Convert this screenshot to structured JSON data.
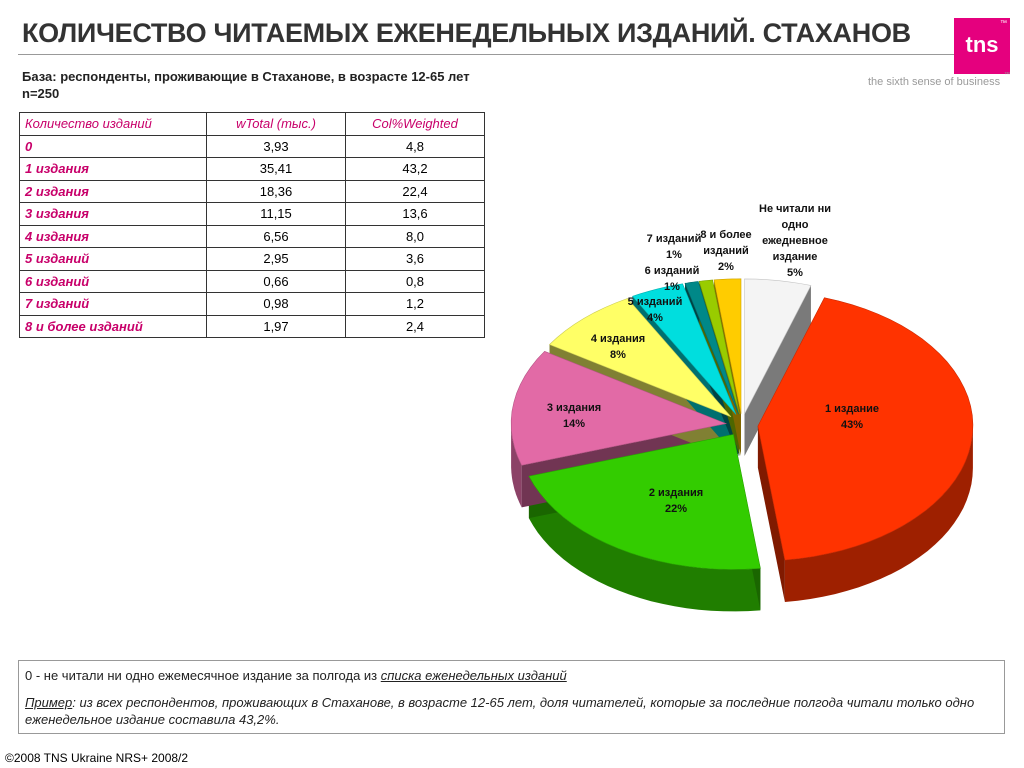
{
  "title": "КОЛИЧЕСТВО ЧИТАЕМЫХ ЕЖЕНЕДЕЛЬНЫХ ИЗДАНИЙ. СТАХАНОВ",
  "logo": {
    "text": "tns",
    "tm": "™",
    "tagline": "the sixth sense of business",
    "tagline_tm": "™",
    "color": "#e5007e"
  },
  "base": {
    "line1": "База: респонденты, проживающие в Стаханове, в возрасте 12-65 лет",
    "line2": "n=250"
  },
  "table": {
    "headers": [
      "Количество изданий",
      "wTotal (тыс.)",
      "Col%Weighted"
    ],
    "rows": [
      [
        "0",
        "3,93",
        "4,8"
      ],
      [
        "1 издания",
        "35,41",
        "43,2"
      ],
      [
        "2 издания",
        "18,36",
        "22,4"
      ],
      [
        "3 издания",
        "11,15",
        "13,6"
      ],
      [
        "4 издания",
        "6,56",
        "8,0"
      ],
      [
        "5 изданий",
        "2,95",
        "3,6"
      ],
      [
        "6 изданий",
        "0,66",
        "0,8"
      ],
      [
        "7 изданий",
        "0,98",
        "1,2"
      ],
      [
        "8 и более изданий",
        "1,97",
        "2,4"
      ]
    ]
  },
  "chart_data": {
    "type": "pie",
    "title": "",
    "slices": [
      {
        "label": "Не читали ни одно ежедневное издание",
        "label_lines": [
          "Не читали ни",
          "одно",
          "ежедневное",
          "издание",
          "5%"
        ],
        "value": 5,
        "color": "#f4f4f4"
      },
      {
        "label": "1 издание",
        "label_lines": [
          "1 издание",
          "43%"
        ],
        "value": 43,
        "color": "#ff3300"
      },
      {
        "label": "2 издания",
        "label_lines": [
          "2 издания",
          "22%"
        ],
        "value": 22,
        "color": "#33cc00"
      },
      {
        "label": "3 издания",
        "label_lines": [
          "3 издания",
          "14%"
        ],
        "value": 14,
        "color": "#e26aa6"
      },
      {
        "label": "4 издания",
        "label_lines": [
          "4 издания",
          "8%"
        ],
        "value": 8,
        "color": "#ffff66"
      },
      {
        "label": "5 изданий",
        "label_lines": [
          "5 изданий",
          "4%"
        ],
        "value": 4,
        "color": "#00dede"
      },
      {
        "label": "6 изданий",
        "label_lines": [
          "6 изданий",
          "1%"
        ],
        "value": 1,
        "color": "#008888"
      },
      {
        "label": "7 изданий",
        "label_lines": [
          "7 изданий",
          "1%"
        ],
        "value": 1,
        "color": "#99cc00"
      },
      {
        "label": "8 и более изданий",
        "label_lines": [
          "8 и более",
          "изданий",
          "2%"
        ],
        "value": 2,
        "color": "#ffcc00"
      }
    ],
    "extra_label": "",
    "legend": "none"
  },
  "notes": {
    "note1_prefix": "0 - не читали ни одно ежемесячное издание за полгода из ",
    "note1_link": "списка еженедельных изданий",
    "note2_prefix": "Пример",
    "note2_text": ":  из всех респондентов, проживающих в Стаханове, в возрасте 12-65 лет, доля читателей, которые за последние полгода читали только одно еженедельное издание составила  43,2%."
  },
  "footer": "©2008 TNS Ukraine  NRS+ 2008/2"
}
